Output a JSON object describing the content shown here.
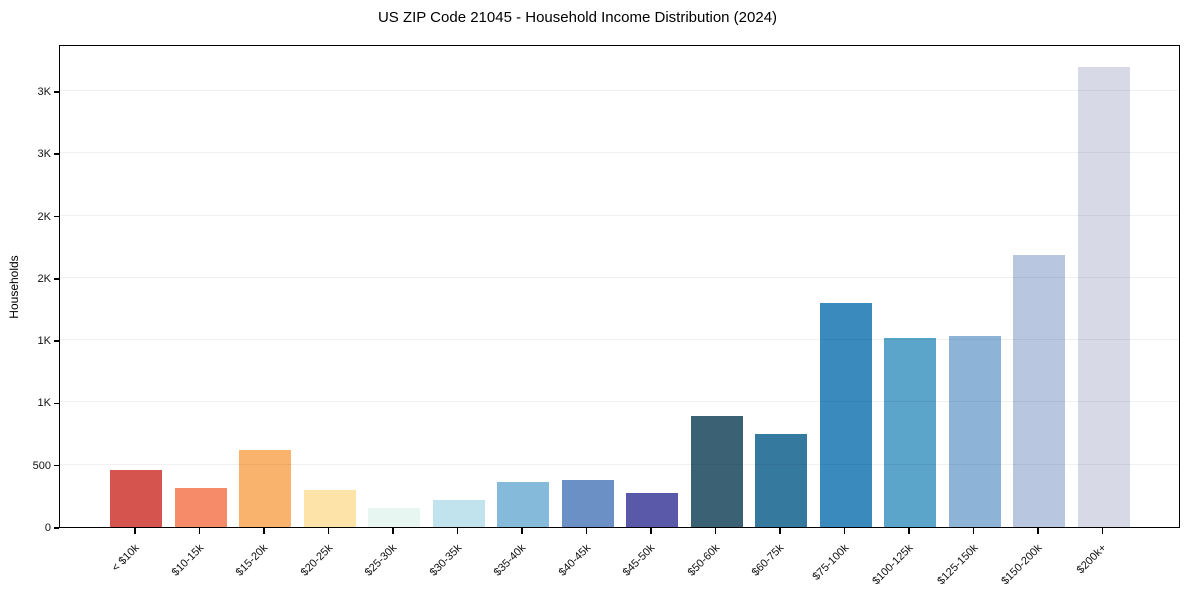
{
  "figure": {
    "title": "US ZIP Code 21045 - Household Income Distribution (2024)",
    "ylabel": "Households"
  },
  "chart_data": {
    "type": "bar",
    "title": "US ZIP Code 21045 - Household Income Distribution (2024)",
    "xlabel": "",
    "ylabel": "Households",
    "categories": [
      "< $10k",
      "$10-15k",
      "$15-20k",
      "$20-25k",
      "$25-30k",
      "$30-35k",
      "$35-40k",
      "$40-45k",
      "$45-50k",
      "$50-60k",
      "$60-75k",
      "$75-100k",
      "$100-125k",
      "$125-150k",
      "$150-200k",
      "$200k+"
    ],
    "values": [
      460,
      315,
      620,
      295,
      155,
      220,
      365,
      375,
      275,
      890,
      750,
      1800,
      1520,
      1535,
      2185,
      3690
    ],
    "bar_colors": [
      "#d6544e",
      "#f58b69",
      "#fab36c",
      "#fde3a7",
      "#e8f6f2",
      "#c0e3ee",
      "#86bada",
      "#6b90c6",
      "#5a58a8",
      "#3a6274",
      "#36799e",
      "#3a8abe",
      "#5aa5c9",
      "#8db4d7",
      "#b9c6e0",
      "#d7d9e6"
    ],
    "ylim": [
      0,
      3876
    ],
    "yticks": [
      {
        "value": 0,
        "label": "0"
      },
      {
        "value": 500,
        "label": "500"
      },
      {
        "value": 1000,
        "label": "1K"
      },
      {
        "value": 1500,
        "label": "1K"
      },
      {
        "value": 2000,
        "label": "2K"
      },
      {
        "value": 2500,
        "label": "2K"
      },
      {
        "value": 3000,
        "label": "3K"
      },
      {
        "value": 3500,
        "label": "3K"
      }
    ],
    "grid": "horizontal",
    "gridline_color": "#ececec",
    "legend": "none",
    "background": "#ffffff"
  }
}
